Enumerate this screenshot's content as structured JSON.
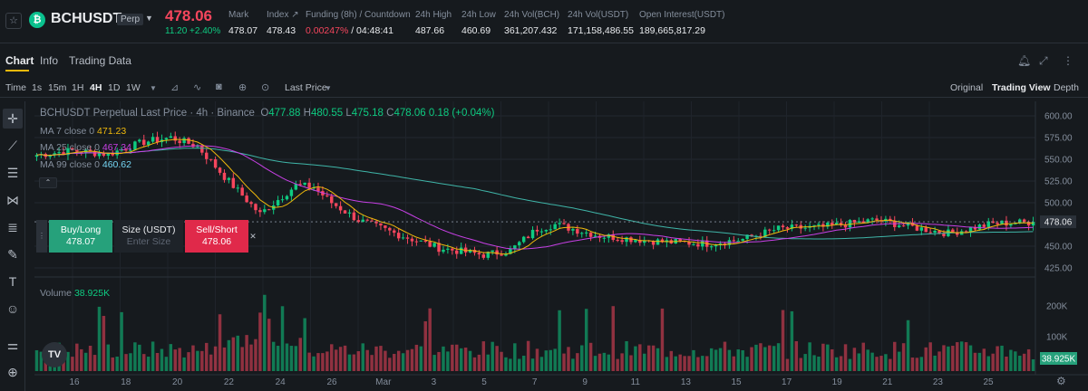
{
  "header": {
    "symbol": "BCHUSDT",
    "contract_badge": "Perp",
    "last_price": "478.06",
    "change": "11.20 +2.40%",
    "stats": [
      {
        "label": "Mark",
        "value": "478.07"
      },
      {
        "label": "Index ↗",
        "value": "478.43"
      },
      {
        "label": "Funding (8h) / Countdown",
        "value_red": "0.00247%",
        "value": " / 04:48:41"
      },
      {
        "label": "24h High",
        "value": "487.66"
      },
      {
        "label": "24h Low",
        "value": "460.69"
      },
      {
        "label": "24h Vol(BCH)",
        "value": "361,207.432"
      },
      {
        "label": "24h Vol(USDT)",
        "value": "171,158,486.55"
      },
      {
        "label": "Open Interest(USDT)",
        "value": "189,665,817.29"
      }
    ]
  },
  "tabs": [
    "Chart",
    "Info",
    "Trading Data"
  ],
  "toolbar": {
    "intervals": [
      "Time",
      "1s",
      "15m",
      "1H",
      "4H",
      "1D",
      "1W"
    ],
    "active_interval": "4H",
    "price_source": "Last Price",
    "views": [
      "Original",
      "Trading View",
      "Depth"
    ],
    "active_view": "Trading View"
  },
  "legend": {
    "title": "BCHUSDT Perpetual Last Price · 4h · Binance",
    "ohlc": {
      "o": "O",
      "o_v": "477.88",
      "h": "H",
      "h_v": "480.55",
      "l": "L",
      "l_v": "475.18",
      "c": "C",
      "c_v": "478.06",
      "chg": "0.18 (+0.04%)"
    },
    "ma7": {
      "label": "MA 7 close 0",
      "value": "471.23"
    },
    "ma25": {
      "label": "MA 25 close 0",
      "value": "467.34"
    },
    "ma99": {
      "label": "MA 99 close 0",
      "value": "460.62"
    },
    "volume": {
      "label": "Volume",
      "value": "38.925K"
    }
  },
  "order_panel": {
    "buy_label": "Buy/Long",
    "buy_price": "478.07",
    "size_label": "Size (USDT)",
    "size_placeholder": "Enter Size",
    "sell_label": "Sell/Short",
    "sell_price": "478.06"
  },
  "tv_logo": "TV",
  "price_axis": [
    "600.00",
    "575.00",
    "550.00",
    "525.00",
    "500.00",
    "478.06",
    "450.00",
    "425.00"
  ],
  "volume_axis": [
    "200K",
    "100K",
    "38.925K"
  ],
  "time_axis": [
    "16",
    "18",
    "20",
    "22",
    "24",
    "26",
    "Mar",
    "3",
    "5",
    "7",
    "9",
    "11",
    "13",
    "15",
    "17",
    "19",
    "21",
    "23",
    "25"
  ],
  "colors": {
    "up": "#0ecb81",
    "down": "#f6465d",
    "ma7": "#f0b90b",
    "ma25": "#c840e6",
    "ma99": "#3fb5a8",
    "accent": "#f0b90b"
  },
  "chart_data": {
    "type": "candlestick",
    "interval": "4h",
    "ylim": [
      425,
      600
    ],
    "ticks_x": [
      "16",
      "18",
      "20",
      "22",
      "24",
      "26",
      "Mar",
      "3",
      "5",
      "7",
      "9",
      "11",
      "13",
      "15",
      "17",
      "19",
      "21",
      "23",
      "25"
    ],
    "keypoints_close": [
      [
        0,
        555
      ],
      [
        8,
        560
      ],
      [
        16,
        556
      ],
      [
        24,
        570
      ],
      [
        30,
        575
      ],
      [
        36,
        565
      ],
      [
        42,
        530
      ],
      [
        50,
        487
      ],
      [
        58,
        520
      ],
      [
        62,
        518
      ],
      [
        66,
        500
      ],
      [
        72,
        480
      ],
      [
        80,
        465
      ],
      [
        90,
        448
      ],
      [
        100,
        440
      ],
      [
        106,
        445
      ],
      [
        112,
        470
      ],
      [
        116,
        475
      ],
      [
        126,
        462
      ],
      [
        140,
        455
      ],
      [
        150,
        453
      ],
      [
        158,
        458
      ],
      [
        166,
        470
      ],
      [
        176,
        472
      ],
      [
        188,
        480
      ],
      [
        198,
        470
      ],
      [
        204,
        465
      ],
      [
        214,
        476
      ],
      [
        224,
        478
      ]
    ],
    "ma7_last": 471.23,
    "ma25_last": 467.34,
    "ma99_last": 460.62,
    "last_price": 478.06,
    "volume_last": 38925
  }
}
